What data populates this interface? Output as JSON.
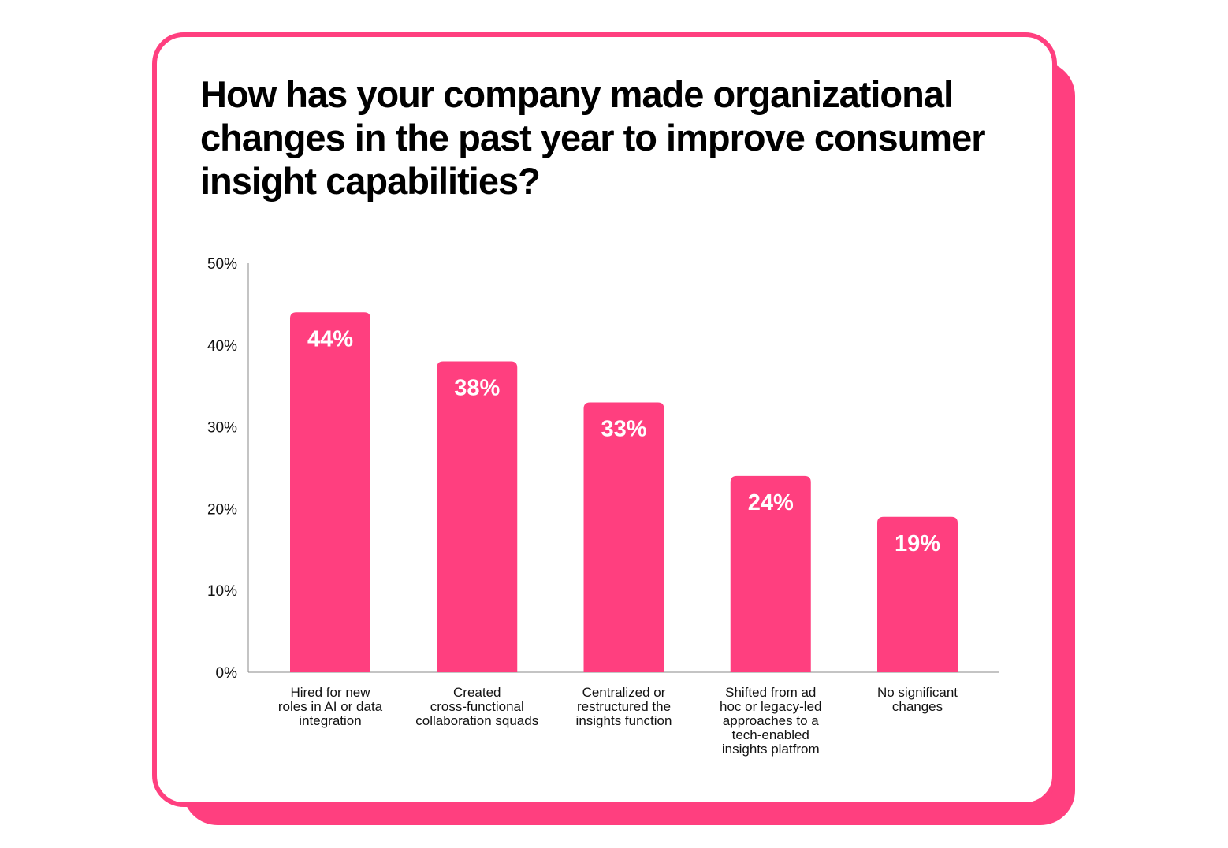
{
  "colors": {
    "accent": "#ff3f7f",
    "text": "#111111",
    "background": "#ffffff"
  },
  "chart_data": {
    "type": "bar",
    "title": "How has your company made organizational changes in the past year to improve consumer insight capabilities?",
    "categories": [
      [
        "Hired for new",
        "roles in AI or data",
        "integration"
      ],
      [
        "Created",
        "cross-functional",
        "collaboration squads"
      ],
      [
        "Centralized or",
        "restructured the",
        "insights function"
      ],
      [
        "Shifted from ad",
        "hoc or legacy-led",
        "approaches to a",
        "tech-enabled",
        "insights platfrom"
      ],
      [
        "No significant",
        "changes"
      ]
    ],
    "values": [
      44,
      38,
      33,
      24,
      19
    ],
    "data_labels": [
      "44%",
      "38%",
      "33%",
      "24%",
      "19%"
    ],
    "ylim": [
      0,
      50
    ],
    "yticks": [
      0,
      10,
      20,
      30,
      40,
      50
    ],
    "ytick_labels": [
      "0%",
      "10%",
      "20%",
      "30%",
      "40%",
      "50%"
    ],
    "xlabel": "",
    "ylabel": "",
    "grid": false,
    "legend": "none"
  }
}
